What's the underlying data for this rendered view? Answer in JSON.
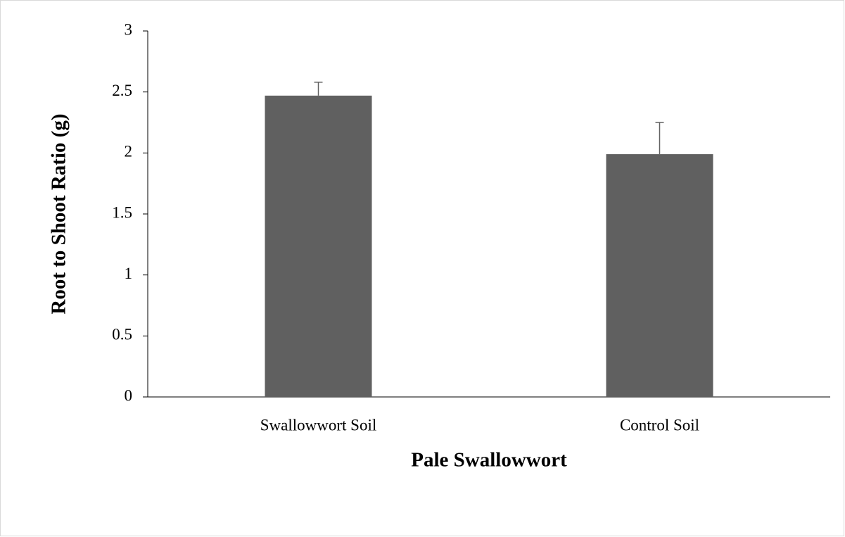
{
  "chart_data": {
    "type": "bar",
    "xlabel": "Pale Swallowwort",
    "ylabel": "Root to Shoot Ratio (g)",
    "categories": [
      "Swallowwort Soil",
      "Control Soil"
    ],
    "values": [
      2.47,
      1.99
    ],
    "errors": [
      0.11,
      0.26
    ],
    "color": "#606060",
    "ylim": [
      0,
      3
    ],
    "yticks": [
      0,
      0.5,
      1,
      1.5,
      2,
      2.5,
      3
    ],
    "grid": false
  }
}
